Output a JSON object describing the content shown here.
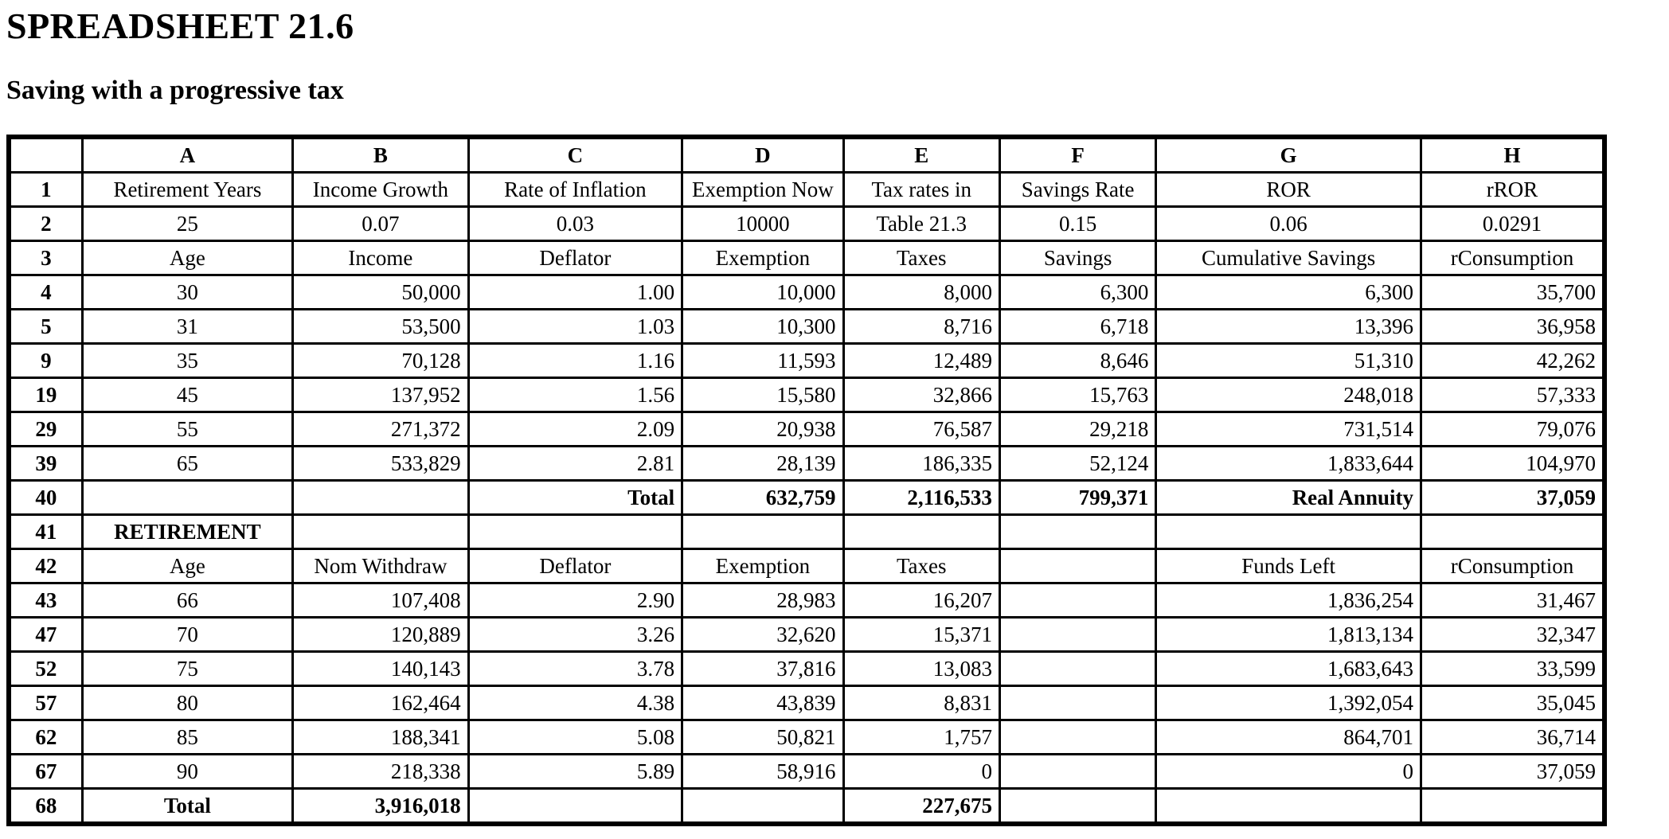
{
  "page": {
    "title": "SPREADSHEET 21.6",
    "subtitle": "Saving with a progressive tax"
  },
  "table": {
    "corner_label": "",
    "column_letters": [
      "A",
      "B",
      "C",
      "D",
      "E",
      "F",
      "G",
      "H"
    ],
    "rows": [
      {
        "num": "1",
        "bold": false,
        "align": [
          "c",
          "c",
          "c",
          "c",
          "c",
          "c",
          "c",
          "c"
        ],
        "cells": [
          "Retirement Years",
          "Income Growth",
          "Rate of Inflation",
          "Exemption Now",
          "Tax rates in",
          "Savings Rate",
          "ROR",
          "rROR"
        ]
      },
      {
        "num": "2",
        "bold": false,
        "align": [
          "c",
          "c",
          "c",
          "c",
          "c",
          "c",
          "c",
          "c"
        ],
        "cells": [
          "25",
          "0.07",
          "0.03",
          "10000",
          "Table 21.3",
          "0.15",
          "0.06",
          "0.0291"
        ]
      },
      {
        "num": "3",
        "bold": false,
        "align": [
          "c",
          "c",
          "c",
          "c",
          "c",
          "c",
          "c",
          "c"
        ],
        "cells": [
          "Age",
          "Income",
          "Deflator",
          "Exemption",
          "Taxes",
          "Savings",
          "Cumulative Savings",
          "rConsumption"
        ]
      },
      {
        "num": "4",
        "bold": false,
        "align": [
          "c",
          "r",
          "r",
          "r",
          "r",
          "r",
          "r",
          "r"
        ],
        "cells": [
          "30",
          "50,000",
          "1.00",
          "10,000",
          "8,000",
          "6,300",
          "6,300",
          "35,700"
        ]
      },
      {
        "num": "5",
        "bold": false,
        "align": [
          "c",
          "r",
          "r",
          "r",
          "r",
          "r",
          "r",
          "r"
        ],
        "cells": [
          "31",
          "53,500",
          "1.03",
          "10,300",
          "8,716",
          "6,718",
          "13,396",
          "36,958"
        ]
      },
      {
        "num": "9",
        "bold": false,
        "align": [
          "c",
          "r",
          "r",
          "r",
          "r",
          "r",
          "r",
          "r"
        ],
        "cells": [
          "35",
          "70,128",
          "1.16",
          "11,593",
          "12,489",
          "8,646",
          "51,310",
          "42,262"
        ]
      },
      {
        "num": "19",
        "bold": false,
        "align": [
          "c",
          "r",
          "r",
          "r",
          "r",
          "r",
          "r",
          "r"
        ],
        "cells": [
          "45",
          "137,952",
          "1.56",
          "15,580",
          "32,866",
          "15,763",
          "248,018",
          "57,333"
        ]
      },
      {
        "num": "29",
        "bold": false,
        "align": [
          "c",
          "r",
          "r",
          "r",
          "r",
          "r",
          "r",
          "r"
        ],
        "cells": [
          "55",
          "271,372",
          "2.09",
          "20,938",
          "76,587",
          "29,218",
          "731,514",
          "79,076"
        ]
      },
      {
        "num": "39",
        "bold": false,
        "align": [
          "c",
          "r",
          "r",
          "r",
          "r",
          "r",
          "r",
          "r"
        ],
        "cells": [
          "65",
          "533,829",
          "2.81",
          "28,139",
          "186,335",
          "52,124",
          "1,833,644",
          "104,970"
        ]
      },
      {
        "num": "40",
        "bold": true,
        "align": [
          "c",
          "c",
          "r",
          "r",
          "r",
          "r",
          "r",
          "r"
        ],
        "cells": [
          "",
          "",
          "Total",
          "632,759",
          "2,116,533",
          "799,371",
          "Real Annuity",
          "37,059"
        ]
      },
      {
        "num": "41",
        "bold": true,
        "align": [
          "c",
          "c",
          "c",
          "c",
          "c",
          "c",
          "c",
          "c"
        ],
        "cells": [
          "RETIREMENT",
          "",
          "",
          "",
          "",
          "",
          "",
          ""
        ]
      },
      {
        "num": "42",
        "bold": false,
        "align": [
          "c",
          "c",
          "c",
          "c",
          "c",
          "c",
          "c",
          "c"
        ],
        "cells": [
          "Age",
          "Nom Withdraw",
          "Deflator",
          "Exemption",
          "Taxes",
          "",
          "Funds Left",
          "rConsumption"
        ]
      },
      {
        "num": "43",
        "bold": false,
        "align": [
          "c",
          "r",
          "r",
          "r",
          "r",
          "c",
          "r",
          "r"
        ],
        "cells": [
          "66",
          "107,408",
          "2.90",
          "28,983",
          "16,207",
          "",
          "1,836,254",
          "31,467"
        ]
      },
      {
        "num": "47",
        "bold": false,
        "align": [
          "c",
          "r",
          "r",
          "r",
          "r",
          "c",
          "r",
          "r"
        ],
        "cells": [
          "70",
          "120,889",
          "3.26",
          "32,620",
          "15,371",
          "",
          "1,813,134",
          "32,347"
        ]
      },
      {
        "num": "52",
        "bold": false,
        "align": [
          "c",
          "r",
          "r",
          "r",
          "r",
          "c",
          "r",
          "r"
        ],
        "cells": [
          "75",
          "140,143",
          "3.78",
          "37,816",
          "13,083",
          "",
          "1,683,643",
          "33,599"
        ]
      },
      {
        "num": "57",
        "bold": false,
        "align": [
          "c",
          "r",
          "r",
          "r",
          "r",
          "c",
          "r",
          "r"
        ],
        "cells": [
          "80",
          "162,464",
          "4.38",
          "43,839",
          "8,831",
          "",
          "1,392,054",
          "35,045"
        ]
      },
      {
        "num": "62",
        "bold": false,
        "align": [
          "c",
          "r",
          "r",
          "r",
          "r",
          "c",
          "r",
          "r"
        ],
        "cells": [
          "85",
          "188,341",
          "5.08",
          "50,821",
          "1,757",
          "",
          "864,701",
          "36,714"
        ]
      },
      {
        "num": "67",
        "bold": false,
        "align": [
          "c",
          "r",
          "r",
          "r",
          "r",
          "c",
          "r",
          "r"
        ],
        "cells": [
          "90",
          "218,338",
          "5.89",
          "58,916",
          "0",
          "",
          "0",
          "37,059"
        ]
      },
      {
        "num": "68",
        "bold": true,
        "align": [
          "c",
          "r",
          "c",
          "c",
          "r",
          "c",
          "c",
          "c"
        ],
        "cells": [
          "Total",
          "3,916,018",
          "",
          "",
          "227,675",
          "",
          "",
          ""
        ]
      }
    ]
  }
}
